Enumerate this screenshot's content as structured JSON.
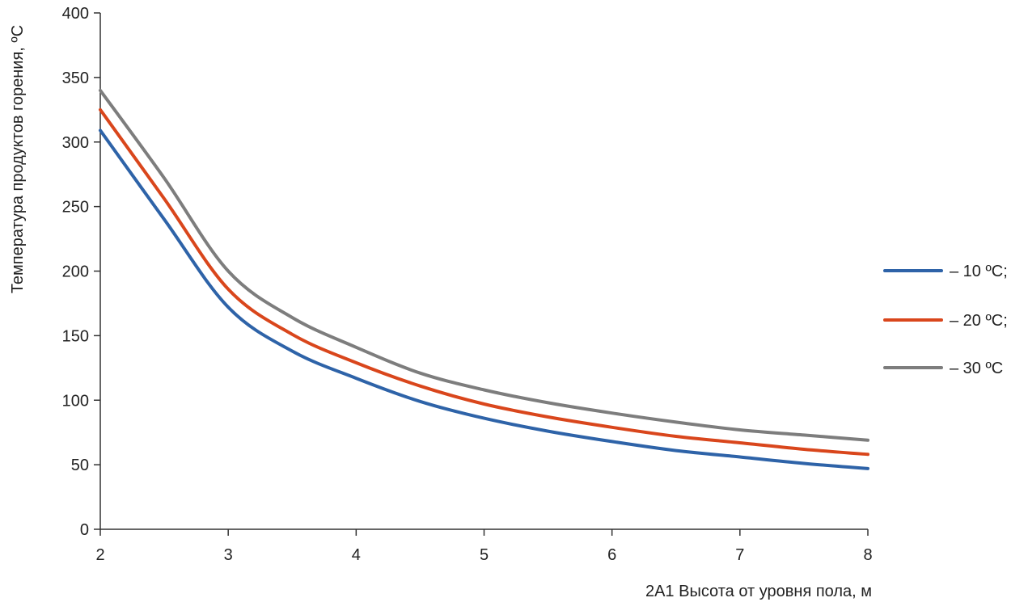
{
  "chart_data": {
    "type": "line",
    "title": "",
    "xlabel": "2А1 Высота от уровня пола, м",
    "ylabel": "Температура продуктов горения, ºС",
    "xlim": [
      2,
      8
    ],
    "ylim": [
      0,
      400
    ],
    "x_ticks": [
      2,
      3,
      4,
      5,
      6,
      7,
      8
    ],
    "y_ticks": [
      0,
      50,
      100,
      150,
      200,
      250,
      300,
      350,
      400
    ],
    "grid": false,
    "legend_position": "right",
    "x": [
      2,
      2.5,
      3,
      3.5,
      4,
      4.5,
      5,
      5.5,
      6,
      6.5,
      7,
      7.5,
      8
    ],
    "series": [
      {
        "name": "– 10 ºС;",
        "color": "#2e63a8",
        "values": [
          309,
          240,
          172,
          138,
          117,
          99,
          86,
          76,
          68,
          61,
          56,
          51,
          47
        ]
      },
      {
        "name": "– 20 ºС;",
        "color": "#d9461c",
        "values": [
          325,
          256,
          186,
          151,
          129,
          111,
          97,
          87,
          79,
          72,
          67,
          62,
          58
        ]
      },
      {
        "name": "– 30 ºС",
        "color": "#7d7d7d",
        "values": [
          340,
          272,
          200,
          164,
          141,
          121,
          108,
          98,
          90,
          83,
          77,
          73,
          69
        ]
      }
    ]
  }
}
